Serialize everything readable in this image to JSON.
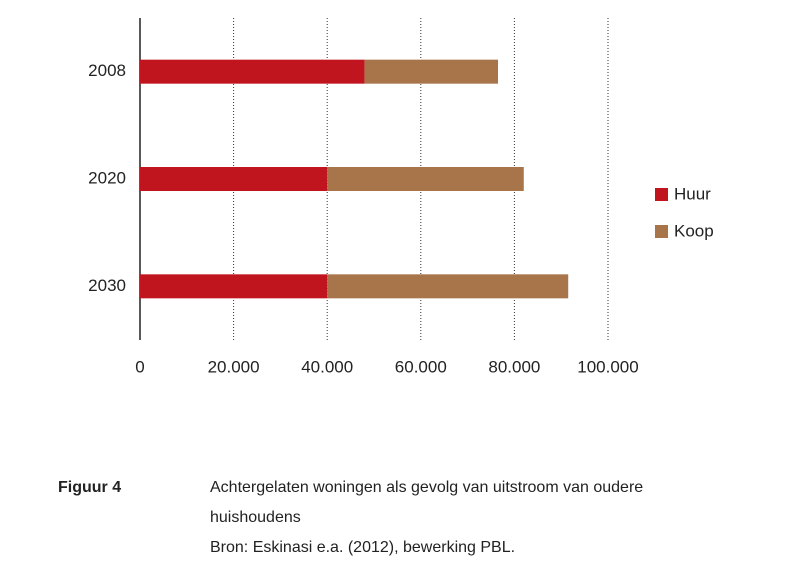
{
  "chart_data": {
    "type": "bar",
    "orientation": "horizontal",
    "stacked": true,
    "categories": [
      "2008",
      "2020",
      "2030"
    ],
    "series": [
      {
        "name": "Huur",
        "color": "#c0141e",
        "values": [
          48000,
          40000,
          40000
        ]
      },
      {
        "name": "Koop",
        "color": "#a8744a",
        "values": [
          28500,
          42000,
          51500
        ]
      }
    ],
    "xlim": [
      0,
      100000
    ],
    "xticks": [
      0,
      {
        "value": 20000,
        "label": "20.000"
      },
      {
        "value": 40000,
        "label": "40.000"
      },
      {
        "value": 60000,
        "label": "60.000"
      },
      {
        "value": 80000,
        "label": "80.000"
      },
      {
        "value": 100000,
        "label": "100.000"
      }
    ],
    "grid": true,
    "legend": "right"
  },
  "caption": {
    "label": "Figuur 4",
    "title": "Achtergelaten woningen als gevolg van uitstroom van oudere huishoudens",
    "source": "Bron: Eskinasi e.a. (2012), bewerking PBL."
  }
}
